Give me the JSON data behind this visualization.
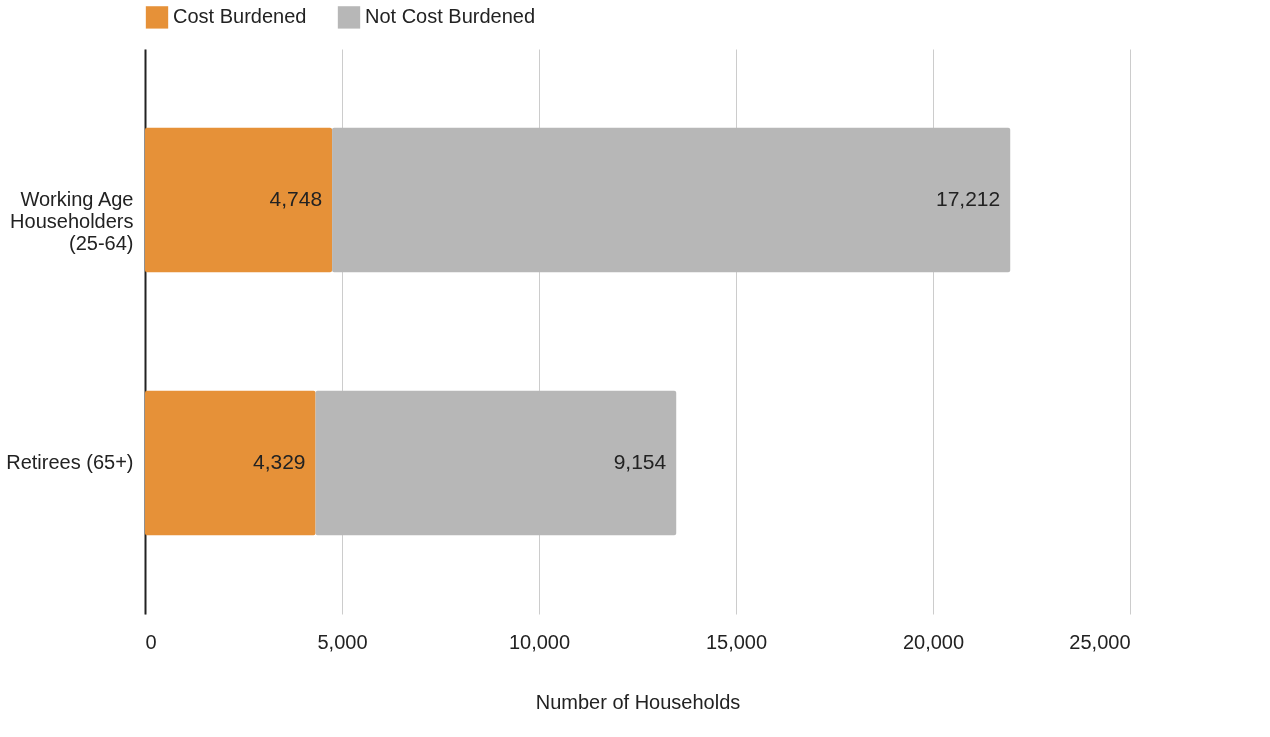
{
  "chart_data": {
    "type": "bar",
    "orientation": "horizontal",
    "stacked": true,
    "xlabel": "Number of Households",
    "categories": [
      "Working Age Householders (25-64)",
      "Retirees (65+)"
    ],
    "series": [
      {
        "name": "Cost Burdened",
        "color": "#e69138",
        "values": [
          4748,
          4329
        ],
        "value_labels": [
          "4,748",
          "4,329"
        ]
      },
      {
        "name": "Not Cost Burdened",
        "color": "#b7b7b7",
        "values": [
          17212,
          9154
        ],
        "value_labels": [
          "17,212",
          "9,154"
        ]
      }
    ],
    "xlim": [
      0,
      25000
    ],
    "xticks": [
      0,
      {
        "value": 5000,
        "label": "5,000"
      },
      {
        "value": 10000,
        "label": "10,000"
      },
      {
        "value": 15000,
        "label": "15,000"
      },
      {
        "value": 20000,
        "label": "20,000"
      },
      {
        "value": 25000,
        "label": "25,000"
      }
    ],
    "grid": "x",
    "legend": "top"
  }
}
